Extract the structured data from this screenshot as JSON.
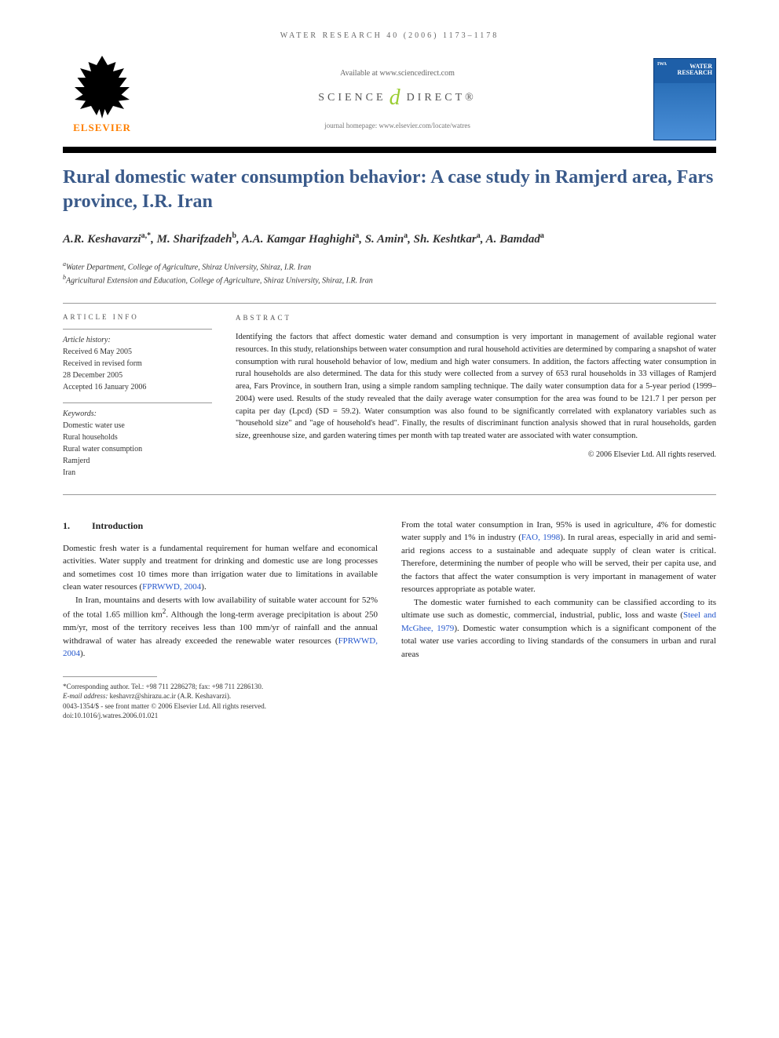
{
  "running_header": "WATER RESEARCH 40 (2006) 1173–1178",
  "top": {
    "elsevier": "ELSEVIER",
    "available_at": "Available at www.sciencedirect.com",
    "science_pre": "SCIENCE",
    "science_post": "DIRECT®",
    "homepage": "journal homepage: www.elsevier.com/locate/watres",
    "cover_iwa": "IWA",
    "cover_title": "WATER RESEARCH"
  },
  "title": "Rural domestic water consumption behavior: A case study in Ramjerd area, Fars province, I.R. Iran",
  "authors_html": "A.R. Keshavarzi<sup>a,*</sup>, M. Sharifzadeh<sup>b</sup>, A.A. Kamgar Haghighi<sup>a</sup>, S. Amin<sup>a</sup>, Sh. Keshtkar<sup>a</sup>, A. Bamdad<sup>a</sup>",
  "affiliations": {
    "a": "Water Department, College of Agriculture, Shiraz University, Shiraz, I.R. Iran",
    "b": "Agricultural Extension and Education, College of Agriculture, Shiraz University, Shiraz, I.R. Iran"
  },
  "info": {
    "heading": "ARTICLE INFO",
    "history_label": "Article history:",
    "history": [
      "Received 6 May 2005",
      "Received in revised form",
      "28 December 2005",
      "Accepted 16 January 2006"
    ],
    "keywords_label": "Keywords:",
    "keywords": [
      "Domestic water use",
      "Rural households",
      "Rural water consumption",
      "Ramjerd",
      "Iran"
    ]
  },
  "abstract": {
    "heading": "ABSTRACT",
    "text": "Identifying the factors that affect domestic water demand and consumption is very important in management of available regional water resources. In this study, relationships between water consumption and rural household activities are determined by comparing a snapshot of water consumption with rural household behavior of low, medium and high water consumers. In addition, the factors affecting water consumption in rural households are also determined. The data for this study were collected from a survey of 653 rural households in 33 villages of Ramjerd area, Fars Province, in southern Iran, using a simple random sampling technique. The daily water consumption data for a 5-year period (1999–2004) were used. Results of the study revealed that the daily average water consumption for the area was found to be 121.7 l per person per capita per day (Lpcd) (SD = 59.2). Water consumption was also found to be significantly correlated with explanatory variables such as \"household size\" and \"age of household's head\". Finally, the results of discriminant function analysis showed that in rural households, garden size, greenhouse size, and garden watering times per month with tap treated water are associated with water consumption.",
    "copyright": "© 2006 Elsevier Ltd. All rights reserved."
  },
  "section1": {
    "num": "1.",
    "title": "Introduction"
  },
  "body": {
    "p1": "Domestic fresh water is a fundamental requirement for human welfare and economical activities. Water supply and treatment for drinking and domestic use are long processes and sometimes cost 10 times more than irrigation water due to limitations in available clean water resources (",
    "p1_cite": "FPRWWD, 2004",
    "p1_end": ").",
    "p2a": "In Iran, mountains and deserts with low availability of suitable water account for 52% of the total 1.65 million km",
    "p2_sup": "2",
    "p2b": ". Although the long-term average precipitation is about 250 mm/yr, most of the territory receives less than 100 mm/yr of rainfall and the annual withdrawal of water has already exceeded the renewable water resources (",
    "p2_cite": "FPRWWD, 2004",
    "p2_end": ").",
    "p3a": "From the total water consumption in Iran, 95% is used in agriculture, 4% for domestic water supply and 1% in industry (",
    "p3_cite": "FAO, 1998",
    "p3b": "). In rural areas, especially in arid and semi-arid regions access to a sustainable and adequate supply of clean water is critical. Therefore, determining the number of people who will be served, their per capita use, and the factors that affect the water consumption is very important in management of water resources appropriate as potable water.",
    "p4a": "The domestic water furnished to each community can be classified according to its ultimate use such as domestic, commercial, industrial, public, loss and waste (",
    "p4_cite": "Steel and McGhee, 1979",
    "p4b": "). Domestic water consumption which is a significant component of the total water use varies according to living standards of the consumers in urban and rural areas"
  },
  "footnotes": {
    "corr": "*Corresponding author. Tel.: +98 711 2286278; fax: +98 711 2286130.",
    "email_label": "E-mail address:",
    "email": "keshavrz@shirazu.ac.ir (A.R. Keshavarzi).",
    "issn": "0043-1354/$ - see front matter © 2006 Elsevier Ltd. All rights reserved.",
    "doi": "doi:10.1016/j.watres.2006.01.021"
  }
}
